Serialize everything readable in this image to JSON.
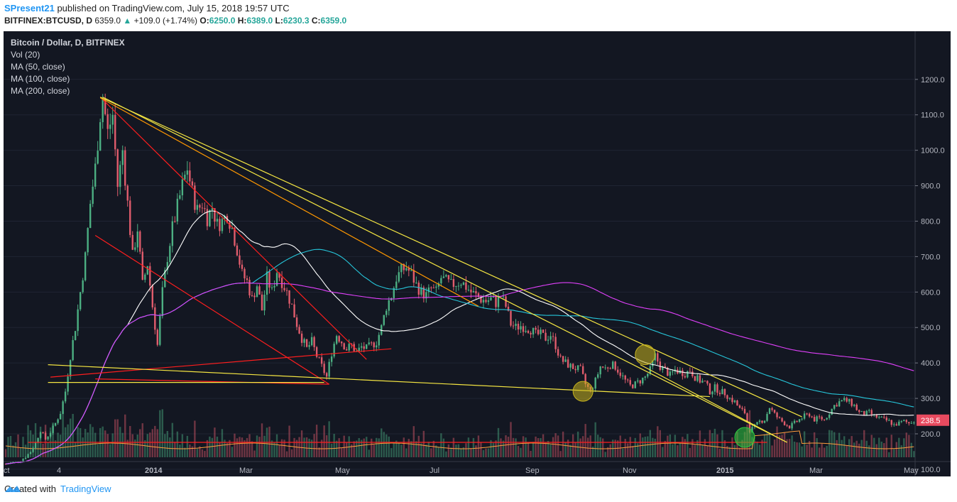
{
  "header": {
    "author": "SPresent21",
    "published_text": "published on TradingView.com, July 15, 2018 19:57 UTC",
    "symbol_line": "BITFINEX:BTCUSD, D",
    "last": "6359.0",
    "change": "+109.0 (+1.74%)",
    "o_label": "O:",
    "o_val": "6250.0",
    "h_label": "H:",
    "h_val": "6389.0",
    "l_label": "L:",
    "l_val": "6230.3",
    "c_label": "C:",
    "c_val": "6359.0"
  },
  "legend": {
    "title": "Bitcoin / Dollar, D, BITFINEX",
    "vol": "Vol (20)",
    "ma50": "MA (50, close)",
    "ma100": "MA (100, close)",
    "ma200": "MA (200, close)"
  },
  "footer": {
    "created_with": "Created with",
    "brand": "TradingView"
  },
  "colors": {
    "background": "#131722",
    "up": "#4caf82",
    "down": "#e05c6c",
    "ma50": "#ffffff",
    "ma100": "#26c6da",
    "ma200": "#e040fb",
    "vol_ma": "#ff9e3d",
    "trend_red": "#ff1e1e",
    "trend_yellow": "#f5e642",
    "trend_orange": "#ff9800",
    "price_tag": "#e84a5f"
  },
  "chart_data": {
    "type": "candlestick",
    "symbol": "BITFINEX:BTCUSD",
    "interval": "D",
    "y_axis": {
      "ticks": [
        100,
        200,
        300,
        400,
        500,
        600,
        700,
        800,
        900,
        1000,
        1100,
        1200
      ],
      "tick_labels": [
        "100.0",
        "200.0",
        "300.0",
        "400.0",
        "500.0",
        "600.0",
        "700.0",
        "800.0",
        "900.0",
        "1000.0",
        "1100.0",
        "1200.0"
      ],
      "range": [
        20,
        1240
      ]
    },
    "x_axis": {
      "labels": [
        "ct",
        "4",
        "2014",
        "Mar",
        "May",
        "Jul",
        "Sep",
        "Nov",
        "2015",
        "Mar",
        "May"
      ],
      "bold": [
        "2014",
        "2015"
      ]
    },
    "last_price": "238.5",
    "price_path": [
      [
        0,
        115
      ],
      [
        3,
        120
      ],
      [
        6,
        125
      ],
      [
        8,
        135
      ],
      [
        10,
        150
      ],
      [
        12,
        175
      ],
      [
        14,
        210
      ],
      [
        16,
        185
      ],
      [
        18,
        205
      ],
      [
        20,
        230
      ],
      [
        22,
        260
      ],
      [
        24,
        320
      ],
      [
        26,
        420
      ],
      [
        28,
        500
      ],
      [
        30,
        600
      ],
      [
        32,
        700
      ],
      [
        34,
        850
      ],
      [
        36,
        950
      ],
      [
        38,
        1100
      ],
      [
        39,
        1150
      ],
      [
        41,
        1050
      ],
      [
        43,
        1100
      ],
      [
        45,
        900
      ],
      [
        47,
        1000
      ],
      [
        49,
        850
      ],
      [
        51,
        700
      ],
      [
        53,
        780
      ],
      [
        55,
        620
      ],
      [
        57,
        680
      ],
      [
        59,
        560
      ],
      [
        61,
        450
      ],
      [
        63,
        600
      ],
      [
        65,
        700
      ],
      [
        67,
        780
      ],
      [
        69,
        840
      ],
      [
        71,
        900
      ],
      [
        73,
        950
      ],
      [
        75,
        880
      ],
      [
        77,
        830
      ],
      [
        79,
        850
      ],
      [
        81,
        810
      ],
      [
        83,
        840
      ],
      [
        85,
        790
      ],
      [
        87,
        800
      ],
      [
        89,
        820
      ],
      [
        91,
        780
      ],
      [
        93,
        720
      ],
      [
        95,
        650
      ],
      [
        97,
        630
      ],
      [
        99,
        580
      ],
      [
        101,
        620
      ],
      [
        103,
        550
      ],
      [
        105,
        640
      ],
      [
        107,
        600
      ],
      [
        109,
        660
      ],
      [
        111,
        630
      ],
      [
        113,
        600
      ],
      [
        115,
        560
      ],
      [
        117,
        510
      ],
      [
        119,
        470
      ],
      [
        121,
        440
      ],
      [
        123,
        460
      ],
      [
        125,
        420
      ],
      [
        127,
        390
      ],
      [
        129,
        360
      ],
      [
        131,
        430
      ],
      [
        133,
        480
      ],
      [
        135,
        460
      ],
      [
        137,
        440
      ],
      [
        139,
        450
      ],
      [
        141,
        430
      ],
      [
        143,
        445
      ],
      [
        145,
        440
      ],
      [
        147,
        450
      ],
      [
        149,
        460
      ],
      [
        151,
        500
      ],
      [
        153,
        560
      ],
      [
        155,
        590
      ],
      [
        157,
        640
      ],
      [
        159,
        660
      ],
      [
        161,
        670
      ],
      [
        163,
        650
      ],
      [
        165,
        620
      ],
      [
        167,
        600
      ],
      [
        169,
        590
      ],
      [
        171,
        610
      ],
      [
        173,
        600
      ],
      [
        175,
        640
      ],
      [
        177,
        630
      ],
      [
        179,
        620
      ],
      [
        181,
        625
      ],
      [
        183,
        630
      ],
      [
        185,
        615
      ],
      [
        187,
        600
      ],
      [
        189,
        590
      ],
      [
        191,
        580
      ],
      [
        193,
        575
      ],
      [
        195,
        580
      ],
      [
        197,
        570
      ],
      [
        199,
        590
      ],
      [
        201,
        560
      ],
      [
        203,
        510
      ],
      [
        205,
        500
      ],
      [
        207,
        505
      ],
      [
        209,
        500
      ],
      [
        211,
        495
      ],
      [
        213,
        480
      ],
      [
        215,
        480
      ],
      [
        217,
        470
      ],
      [
        219,
        480
      ],
      [
        221,
        450
      ],
      [
        223,
        410
      ],
      [
        225,
        400
      ],
      [
        227,
        390
      ],
      [
        229,
        385
      ],
      [
        231,
        380
      ],
      [
        233,
        340
      ],
      [
        235,
        320
      ],
      [
        237,
        350
      ],
      [
        239,
        390
      ],
      [
        241,
        385
      ],
      [
        243,
        395
      ],
      [
        245,
        390
      ],
      [
        247,
        370
      ],
      [
        249,
        350
      ],
      [
        251,
        335
      ],
      [
        253,
        340
      ],
      [
        255,
        350
      ],
      [
        257,
        360
      ],
      [
        259,
        380
      ],
      [
        261,
        420
      ],
      [
        263,
        390
      ],
      [
        265,
        380
      ],
      [
        267,
        365
      ],
      [
        269,
        380
      ],
      [
        271,
        375
      ],
      [
        273,
        370
      ],
      [
        275,
        380
      ],
      [
        277,
        360
      ],
      [
        279,
        350
      ],
      [
        281,
        345
      ],
      [
        283,
        320
      ],
      [
        285,
        330
      ],
      [
        287,
        320
      ],
      [
        289,
        315
      ],
      [
        291,
        300
      ],
      [
        293,
        290
      ],
      [
        295,
        270
      ],
      [
        297,
        260
      ],
      [
        299,
        210
      ],
      [
        301,
        220
      ],
      [
        303,
        235
      ],
      [
        305,
        240
      ],
      [
        307,
        275
      ],
      [
        309,
        255
      ],
      [
        311,
        240
      ],
      [
        313,
        230
      ],
      [
        315,
        220
      ],
      [
        317,
        230
      ],
      [
        319,
        240
      ],
      [
        321,
        250
      ],
      [
        323,
        255
      ],
      [
        325,
        240
      ],
      [
        327,
        245
      ],
      [
        329,
        240
      ],
      [
        331,
        260
      ],
      [
        333,
        280
      ],
      [
        335,
        290
      ],
      [
        337,
        295
      ],
      [
        339,
        290
      ],
      [
        341,
        280
      ],
      [
        343,
        260
      ],
      [
        345,
        255
      ],
      [
        347,
        260
      ],
      [
        349,
        250
      ],
      [
        351,
        245
      ],
      [
        353,
        240
      ],
      [
        355,
        235
      ],
      [
        357,
        225
      ],
      [
        359,
        230
      ],
      [
        361,
        235
      ],
      [
        363,
        230
      ],
      [
        365,
        238.5
      ]
    ]
  }
}
